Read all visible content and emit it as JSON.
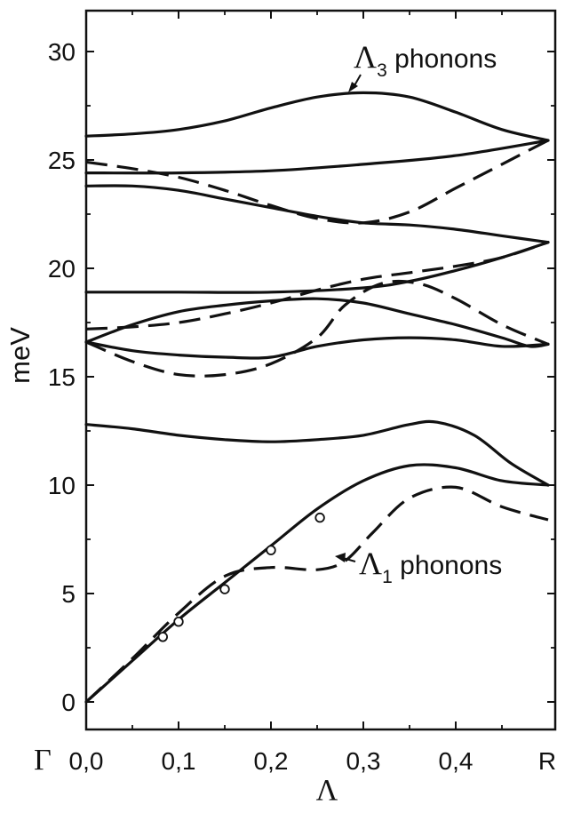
{
  "chart_data": {
    "type": "line",
    "title": "",
    "xlabel": "Λ",
    "ylabel": "meV",
    "xlim": [
      0,
      0.5
    ],
    "ylim": [
      -1.1,
      31.5
    ],
    "grid": false,
    "x_ticks": [
      {
        "value": 0.0,
        "label": "0,0"
      },
      {
        "value": 0.1,
        "label": "0,1"
      },
      {
        "value": 0.2,
        "label": "0,2"
      },
      {
        "value": 0.3,
        "label": "0,3"
      },
      {
        "value": 0.4,
        "label": "0,4"
      }
    ],
    "y_ticks": [
      {
        "value": 0,
        "label": "0"
      },
      {
        "value": 5,
        "label": "5"
      },
      {
        "value": 10,
        "label": "10"
      },
      {
        "value": 15,
        "label": "15"
      },
      {
        "value": 20,
        "label": "20"
      },
      {
        "value": 25,
        "label": "25"
      },
      {
        "value": 30,
        "label": "30"
      }
    ],
    "endpoint_labels": {
      "left": "Γ",
      "right": "R"
    },
    "series": [
      {
        "style": "solid",
        "points": [
          [
            0,
            26.1
          ],
          [
            0.05,
            26.2
          ],
          [
            0.1,
            26.4
          ],
          [
            0.15,
            26.8
          ],
          [
            0.2,
            27.4
          ],
          [
            0.25,
            27.9
          ],
          [
            0.3,
            28.1
          ],
          [
            0.35,
            27.9
          ],
          [
            0.4,
            27.2
          ],
          [
            0.45,
            26.4
          ],
          [
            0.5,
            25.9
          ]
        ]
      },
      {
        "style": "solid",
        "points": [
          [
            0,
            24.4
          ],
          [
            0.1,
            24.4
          ],
          [
            0.2,
            24.5
          ],
          [
            0.3,
            24.8
          ],
          [
            0.4,
            25.2
          ],
          [
            0.5,
            25.9
          ]
        ]
      },
      {
        "style": "solid",
        "points": [
          [
            0,
            23.8
          ],
          [
            0.05,
            23.8
          ],
          [
            0.1,
            23.6
          ],
          [
            0.15,
            23.2
          ],
          [
            0.2,
            22.8
          ],
          [
            0.25,
            22.4
          ],
          [
            0.3,
            22.1
          ],
          [
            0.35,
            22.0
          ],
          [
            0.4,
            21.8
          ],
          [
            0.45,
            21.5
          ],
          [
            0.5,
            21.2
          ]
        ]
      },
      {
        "style": "solid",
        "points": [
          [
            0,
            18.9
          ],
          [
            0.1,
            18.9
          ],
          [
            0.2,
            18.9
          ],
          [
            0.3,
            19.1
          ],
          [
            0.35,
            19.4
          ],
          [
            0.4,
            19.9
          ],
          [
            0.45,
            20.5
          ],
          [
            0.5,
            21.2
          ]
        ]
      },
      {
        "style": "solid",
        "points": [
          [
            0,
            16.6
          ],
          [
            0.05,
            17.4
          ],
          [
            0.1,
            18.0
          ],
          [
            0.15,
            18.3
          ],
          [
            0.2,
            18.5
          ],
          [
            0.25,
            18.6
          ],
          [
            0.3,
            18.4
          ],
          [
            0.35,
            17.9
          ],
          [
            0.4,
            17.4
          ],
          [
            0.45,
            16.8
          ],
          [
            0.48,
            16.4
          ],
          [
            0.5,
            16.5
          ]
        ]
      },
      {
        "style": "solid",
        "points": [
          [
            0,
            16.6
          ],
          [
            0.05,
            16.2
          ],
          [
            0.1,
            16.0
          ],
          [
            0.15,
            15.9
          ],
          [
            0.2,
            15.9
          ],
          [
            0.25,
            16.4
          ],
          [
            0.3,
            16.7
          ],
          [
            0.35,
            16.8
          ],
          [
            0.4,
            16.7
          ],
          [
            0.45,
            16.4
          ],
          [
            0.5,
            16.5
          ]
        ]
      },
      {
        "style": "solid",
        "points": [
          [
            0,
            12.8
          ],
          [
            0.05,
            12.6
          ],
          [
            0.1,
            12.3
          ],
          [
            0.15,
            12.1
          ],
          [
            0.2,
            12.0
          ],
          [
            0.25,
            12.1
          ],
          [
            0.3,
            12.3
          ],
          [
            0.35,
            12.8
          ],
          [
            0.38,
            12.9
          ],
          [
            0.42,
            12.3
          ],
          [
            0.46,
            11.0
          ],
          [
            0.5,
            10.0
          ]
        ]
      },
      {
        "style": "solid",
        "points": [
          [
            0,
            0
          ],
          [
            0.05,
            1.9
          ],
          [
            0.1,
            3.8
          ],
          [
            0.15,
            5.5
          ],
          [
            0.2,
            7.2
          ],
          [
            0.25,
            8.9
          ],
          [
            0.3,
            10.2
          ],
          [
            0.35,
            10.9
          ],
          [
            0.4,
            10.8
          ],
          [
            0.45,
            10.2
          ],
          [
            0.5,
            10.0
          ]
        ]
      },
      {
        "style": "dashed",
        "points": [
          [
            0,
            24.9
          ],
          [
            0.05,
            24.6
          ],
          [
            0.1,
            24.2
          ],
          [
            0.15,
            23.6
          ],
          [
            0.2,
            22.9
          ],
          [
            0.25,
            22.3
          ],
          [
            0.3,
            22.1
          ],
          [
            0.35,
            22.6
          ],
          [
            0.4,
            23.7
          ],
          [
            0.45,
            24.8
          ],
          [
            0.5,
            25.9
          ]
        ]
      },
      {
        "style": "dashed",
        "points": [
          [
            0,
            17.2
          ],
          [
            0.05,
            17.3
          ],
          [
            0.1,
            17.5
          ],
          [
            0.15,
            17.9
          ],
          [
            0.2,
            18.4
          ],
          [
            0.25,
            19.0
          ],
          [
            0.3,
            19.5
          ],
          [
            0.35,
            19.8
          ],
          [
            0.4,
            20.1
          ],
          [
            0.45,
            20.5
          ],
          [
            0.5,
            21.2
          ]
        ]
      },
      {
        "style": "dashed",
        "points": [
          [
            0,
            16.6
          ],
          [
            0.05,
            15.7
          ],
          [
            0.1,
            15.1
          ],
          [
            0.15,
            15.1
          ],
          [
            0.2,
            15.6
          ],
          [
            0.25,
            16.8
          ],
          [
            0.28,
            18.3
          ],
          [
            0.32,
            19.3
          ],
          [
            0.36,
            19.3
          ],
          [
            0.4,
            18.6
          ],
          [
            0.45,
            17.4
          ],
          [
            0.5,
            16.5
          ]
        ]
      },
      {
        "style": "dashed",
        "points": [
          [
            0,
            0
          ],
          [
            0.05,
            2.0
          ],
          [
            0.1,
            4.1
          ],
          [
            0.15,
            5.8
          ],
          [
            0.2,
            6.2
          ],
          [
            0.25,
            6.1
          ],
          [
            0.28,
            6.5
          ],
          [
            0.31,
            7.8
          ],
          [
            0.35,
            9.4
          ],
          [
            0.4,
            9.9
          ],
          [
            0.45,
            9.0
          ],
          [
            0.5,
            8.4
          ]
        ]
      }
    ],
    "points": [
      [
        0.083,
        3.0
      ],
      [
        0.1,
        3.7
      ],
      [
        0.15,
        5.2
      ],
      [
        0.2,
        7.0
      ],
      [
        0.253,
        8.5
      ]
    ],
    "annotations": [
      {
        "greek": "Λ",
        "sub": "3",
        "text": " phonons",
        "target": [
          0.29,
          28.1
        ]
      },
      {
        "greek": "Λ",
        "sub": "1",
        "text": " phonons",
        "target": [
          0.28,
          6.6
        ]
      }
    ]
  }
}
